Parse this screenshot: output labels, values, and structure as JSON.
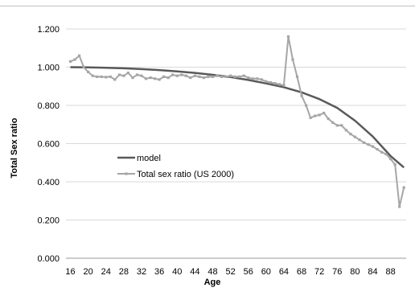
{
  "chart_data": {
    "type": "line",
    "title": "",
    "xlabel": "Age",
    "ylabel": "Total Sex ratio",
    "ylim": [
      0,
      1.2
    ],
    "y_tick_labels": [
      "0.000",
      "0.200",
      "0.400",
      "0.600",
      "0.800",
      "1.000",
      "1.200"
    ],
    "x_tick_labels": [
      "16",
      "20",
      "24",
      "28",
      "32",
      "36",
      "40",
      "44",
      "48",
      "52",
      "56",
      "60",
      "64",
      "68",
      "72",
      "76",
      "80",
      "84",
      "88"
    ],
    "grid": "horizontal",
    "legend_position": "left-lower",
    "series": [
      {
        "name": "model",
        "color": "#595959",
        "marker": false,
        "x": [
          16,
          20,
          24,
          28,
          32,
          36,
          40,
          44,
          48,
          52,
          56,
          60,
          64,
          68,
          72,
          76,
          80,
          84,
          88,
          91
        ],
        "y": [
          1.0,
          0.999,
          0.997,
          0.994,
          0.99,
          0.985,
          0.978,
          0.97,
          0.96,
          0.948,
          0.933,
          0.915,
          0.895,
          0.868,
          0.833,
          0.787,
          0.72,
          0.637,
          0.535,
          0.475
        ]
      },
      {
        "name": "Total sex ratio (US 2000)",
        "color": "#a6a6a6",
        "marker": true,
        "x": [
          16,
          17,
          18,
          19,
          20,
          21,
          22,
          23,
          24,
          25,
          26,
          27,
          28,
          29,
          30,
          31,
          32,
          33,
          34,
          35,
          36,
          37,
          38,
          39,
          40,
          41,
          42,
          43,
          44,
          45,
          46,
          47,
          48,
          49,
          50,
          51,
          52,
          53,
          54,
          55,
          56,
          57,
          58,
          59,
          60,
          61,
          62,
          63,
          64,
          65,
          66,
          67,
          68,
          69,
          70,
          71,
          72,
          73,
          74,
          75,
          76,
          77,
          78,
          79,
          80,
          81,
          82,
          83,
          84,
          85,
          86,
          87,
          88,
          89,
          90,
          91
        ],
        "y": [
          1.03,
          1.04,
          1.06,
          1.0,
          0.975,
          0.955,
          0.95,
          0.95,
          0.948,
          0.95,
          0.935,
          0.96,
          0.955,
          0.97,
          0.945,
          0.96,
          0.955,
          0.94,
          0.945,
          0.94,
          0.935,
          0.95,
          0.945,
          0.96,
          0.955,
          0.96,
          0.955,
          0.945,
          0.955,
          0.95,
          0.945,
          0.95,
          0.95,
          0.955,
          0.95,
          0.95,
          0.955,
          0.95,
          0.95,
          0.955,
          0.945,
          0.94,
          0.94,
          0.935,
          0.925,
          0.92,
          0.915,
          0.91,
          0.905,
          1.16,
          1.04,
          0.95,
          0.85,
          0.8,
          0.735,
          0.745,
          0.75,
          0.76,
          0.73,
          0.71,
          0.695,
          0.695,
          0.67,
          0.65,
          0.635,
          0.62,
          0.605,
          0.595,
          0.585,
          0.57,
          0.555,
          0.545,
          0.52,
          0.49,
          0.27,
          0.37
        ]
      }
    ]
  }
}
